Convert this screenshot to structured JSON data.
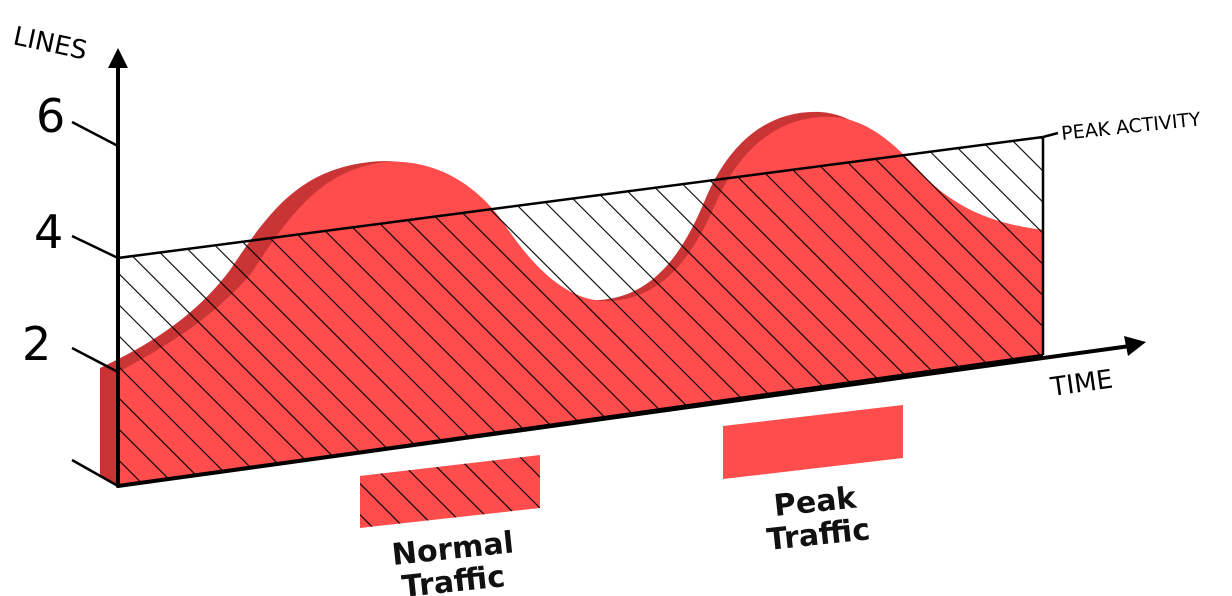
{
  "axes": {
    "y_label": "LINES",
    "x_label": "TIME",
    "y_ticks": [
      "6",
      "4",
      "2"
    ]
  },
  "threshold": {
    "label": "PEAK ACTIVITY"
  },
  "legend": {
    "normal": {
      "line1": "Normal",
      "line2": "Traffic"
    },
    "peak": {
      "line1": "Peak",
      "line2": "Traffic"
    }
  },
  "colors": {
    "traffic_fill": "#ff4c4c",
    "traffic_side": "#c93434",
    "hatch": "#000000"
  }
}
